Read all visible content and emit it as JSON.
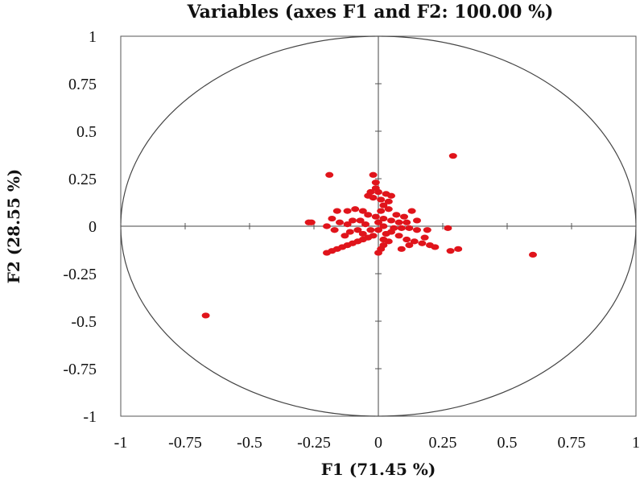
{
  "chart_data": {
    "type": "scatter",
    "title": "Variables (axes F1 and F2: 100.00 %)",
    "xlabel": "F1 (71.45 %)",
    "ylabel": "F2 (28.55 %)",
    "xlim": [
      -1,
      1
    ],
    "ylim": [
      -1,
      1
    ],
    "x_ticks": [
      -1,
      -0.75,
      -0.5,
      -0.25,
      0,
      0.25,
      0.5,
      0.75,
      1
    ],
    "y_ticks": [
      1,
      0.75,
      0.5,
      0.25,
      0,
      -0.25,
      -0.5,
      -0.75,
      -1
    ],
    "x_tick_labels": [
      "-1",
      "-0.75",
      "-0.5",
      "-0.25",
      "0",
      "0.25",
      "0.5",
      "0.75",
      "1"
    ],
    "y_tick_labels": [
      "1",
      "0.75",
      "0.5",
      "0.25",
      "0",
      "-0.25",
      "-0.5",
      "-0.75",
      "-1"
    ],
    "unit_circle": true,
    "marker_color": "#e0141b",
    "series": [
      {
        "name": "variables",
        "points": [
          [
            -0.67,
            -0.47
          ],
          [
            0.29,
            0.37
          ],
          [
            0.6,
            -0.15
          ],
          [
            -0.19,
            0.27
          ],
          [
            -0.26,
            0.02
          ],
          [
            -0.27,
            0.02
          ],
          [
            0.28,
            -0.13
          ],
          [
            0.31,
            -0.12
          ],
          [
            0.27,
            -0.01
          ],
          [
            -0.2,
            -0.14
          ],
          [
            -0.18,
            -0.13
          ],
          [
            -0.16,
            -0.12
          ],
          [
            -0.14,
            -0.11
          ],
          [
            -0.12,
            -0.1
          ],
          [
            -0.1,
            -0.09
          ],
          [
            -0.08,
            -0.08
          ],
          [
            -0.06,
            -0.07
          ],
          [
            -0.04,
            -0.06
          ],
          [
            -0.02,
            -0.05
          ],
          [
            0.0,
            -0.14
          ],
          [
            0.01,
            -0.12
          ],
          [
            0.02,
            -0.1
          ],
          [
            0.02,
            -0.07
          ],
          [
            0.03,
            -0.04
          ],
          [
            0.05,
            -0.03
          ],
          [
            0.08,
            -0.05
          ],
          [
            0.11,
            -0.07
          ],
          [
            0.14,
            -0.08
          ],
          [
            0.17,
            -0.09
          ],
          [
            0.2,
            -0.1
          ],
          [
            0.22,
            -0.11
          ],
          [
            0.12,
            -0.1
          ],
          [
            0.09,
            -0.12
          ],
          [
            -0.02,
            0.27
          ],
          [
            -0.01,
            0.23
          ],
          [
            -0.01,
            0.2
          ],
          [
            0.0,
            0.18
          ],
          [
            -0.03,
            0.18
          ],
          [
            -0.04,
            0.16
          ],
          [
            -0.02,
            0.15
          ],
          [
            0.01,
            0.14
          ],
          [
            0.03,
            0.17
          ],
          [
            0.05,
            0.16
          ],
          [
            0.04,
            0.13
          ],
          [
            0.02,
            0.11
          ],
          [
            0.01,
            0.08
          ],
          [
            0.04,
            0.09
          ],
          [
            0.07,
            0.06
          ],
          [
            0.1,
            0.05
          ],
          [
            0.13,
            0.08
          ],
          [
            0.15,
            0.03
          ],
          [
            0.11,
            0.02
          ],
          [
            0.08,
            0.02
          ],
          [
            0.05,
            0.03
          ],
          [
            0.02,
            0.04
          ],
          [
            -0.01,
            0.05
          ],
          [
            -0.04,
            0.06
          ],
          [
            -0.06,
            0.08
          ],
          [
            -0.09,
            0.09
          ],
          [
            -0.12,
            0.08
          ],
          [
            -0.16,
            0.08
          ],
          [
            -0.18,
            0.04
          ],
          [
            -0.15,
            0.02
          ],
          [
            -0.12,
            0.01
          ],
          [
            -0.1,
            0.03
          ],
          [
            -0.07,
            0.03
          ],
          [
            -0.05,
            0.01
          ],
          [
            -0.08,
            -0.02
          ],
          [
            -0.11,
            -0.03
          ],
          [
            -0.13,
            -0.05
          ],
          [
            -0.17,
            -0.02
          ],
          [
            -0.2,
            0.0
          ],
          [
            0.0,
            0.02
          ],
          [
            0.02,
            0.0
          ],
          [
            0.06,
            -0.01
          ],
          [
            0.09,
            -0.01
          ],
          [
            0.12,
            -0.01
          ],
          [
            0.15,
            -0.02
          ],
          [
            0.19,
            -0.02
          ],
          [
            0.18,
            -0.06
          ],
          [
            -0.03,
            -0.02
          ],
          [
            0.0,
            -0.02
          ],
          [
            -0.06,
            -0.04
          ],
          [
            0.04,
            -0.08
          ]
        ]
      }
    ]
  }
}
